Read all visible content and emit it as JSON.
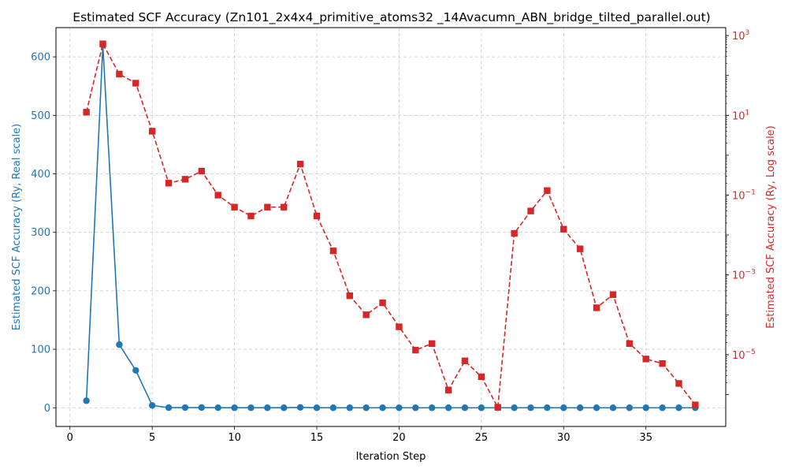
{
  "chart_data": {
    "type": "line",
    "title": "Estimated SCF Accuracy (Zn101_2x4x4_primitive_atoms32 _14Avacumn_ABN_bridge_tilted_parallel.out)",
    "xlabel": "Iteration Step",
    "ylabel_left": "Estimated SCF Accuracy (Ry, Real scale)",
    "ylabel_right": "Estimated SCF Accuracy (Ry, Log scale)",
    "xlim": [
      -0.85,
      39.85
    ],
    "ylim_left": [
      -32,
      650
    ],
    "ylim_right_log10": [
      -6.8,
      3.2
    ],
    "x_ticks": [
      0,
      5,
      10,
      15,
      20,
      25,
      30,
      35
    ],
    "y_ticks_left": [
      0,
      100,
      200,
      300,
      400,
      500,
      600
    ],
    "y_ticks_right": [
      {
        "exp": 3,
        "label": "10",
        "sup": "3"
      },
      {
        "exp": 1,
        "label": "10",
        "sup": "1"
      },
      {
        "exp": -1,
        "label": "10",
        "sup": "−1"
      },
      {
        "exp": -3,
        "label": "10",
        "sup": "−3"
      },
      {
        "exp": -5,
        "label": "10",
        "sup": "−5"
      }
    ],
    "grid": true,
    "colors": {
      "left": "#1f77b4",
      "right": "#d62728"
    },
    "series": [
      {
        "axis": "left",
        "marker": "circle",
        "line": "solid",
        "x": [
          1,
          2,
          3,
          4,
          5,
          6,
          7,
          8,
          9,
          10,
          11,
          12,
          13,
          14,
          15,
          16,
          17,
          18,
          19,
          20,
          21,
          22,
          23,
          24,
          25,
          26,
          27,
          28,
          29,
          30,
          31,
          32,
          33,
          34,
          35,
          36,
          37,
          38
        ],
        "values": [
          12,
          620,
          108,
          64,
          4,
          0.2,
          0.25,
          0.4,
          0.1,
          0.05,
          0.03,
          0.05,
          0.05,
          0.6,
          0.03,
          0.004,
          0.0003,
          0.0001,
          0.0002,
          5e-05,
          1.3e-05,
          1.9e-05,
          1.3e-06,
          7e-06,
          2.8e-06,
          4.8e-07,
          0.011,
          0.04,
          0.13,
          0.014,
          0.0045,
          0.00015,
          0.00032,
          1.9e-05,
          7.8e-06,
          6e-06,
          1.9e-06,
          5.5e-07
        ]
      },
      {
        "axis": "right",
        "marker": "square",
        "line": "dashed",
        "x": [
          1,
          2,
          3,
          4,
          5,
          6,
          7,
          8,
          9,
          10,
          11,
          12,
          13,
          14,
          15,
          16,
          17,
          18,
          19,
          20,
          21,
          22,
          23,
          24,
          25,
          26,
          27,
          28,
          29,
          30,
          31,
          32,
          33,
          34,
          35,
          36,
          37,
          38
        ],
        "values": [
          12,
          620,
          108,
          64,
          4,
          0.2,
          0.25,
          0.4,
          0.1,
          0.05,
          0.03,
          0.05,
          0.05,
          0.6,
          0.03,
          0.004,
          0.0003,
          0.0001,
          0.0002,
          5e-05,
          1.3e-05,
          1.9e-05,
          1.3e-06,
          7e-06,
          2.8e-06,
          4.8e-07,
          0.011,
          0.04,
          0.13,
          0.014,
          0.0045,
          0.00015,
          0.00032,
          1.9e-05,
          7.8e-06,
          6e-06,
          1.9e-06,
          5.5e-07
        ]
      }
    ]
  }
}
